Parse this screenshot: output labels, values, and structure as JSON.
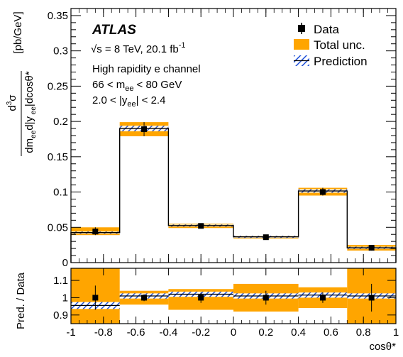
{
  "chart_data": [
    {
      "type": "bar",
      "panel": "main",
      "atlas_label": "ATLAS",
      "energy_label": "√s = 8 TeV, 20.1 fb",
      "energy_label_sup": "-1",
      "channel_label": "High rapidity e channel",
      "mass_label": "66 < m",
      "mass_label_sub": "ee",
      "mass_label_tail": "< 80 GeV",
      "rap_label": "2.0 < |y",
      "rap_label_sub": "ee",
      "rap_label_tail": "| < 2.4",
      "ylabel": "d³σ / dm_ee d|y_ee| dcosθ*",
      "ylabel_unit": "[pb/GeV]",
      "xlim": [
        -1,
        1
      ],
      "ylim": [
        0,
        0.36
      ],
      "yticks": [
        "0",
        "0.05",
        "0.1",
        "0.15",
        "0.2",
        "0.25",
        "0.3",
        "0.35"
      ],
      "ytick_values": [
        0,
        0.05,
        0.1,
        0.15,
        0.2,
        0.25,
        0.3,
        0.35
      ],
      "bin_edges": [
        -1,
        -0.7,
        -0.4,
        0,
        0.4,
        0.7,
        1
      ],
      "bin_centers": [
        -0.85,
        -0.55,
        -0.2,
        0.2,
        0.55,
        0.85
      ],
      "series": [
        {
          "name": "Data",
          "values": [
            0.044,
            0.189,
            0.052,
            0.036,
            0.1,
            0.021
          ]
        },
        {
          "name": "Total unc.",
          "band_lo": [
            0.039,
            0.179,
            0.049,
            0.034,
            0.095,
            0.017
          ],
          "band_hi": [
            0.05,
            0.199,
            0.055,
            0.038,
            0.106,
            0.025
          ]
        },
        {
          "name": "Prediction",
          "values": [
            0.0425,
            0.19,
            0.0525,
            0.0365,
            0.1015,
            0.021
          ],
          "band_lo": [
            0.041,
            0.186,
            0.051,
            0.035,
            0.099,
            0.0195
          ],
          "band_hi": [
            0.044,
            0.194,
            0.054,
            0.038,
            0.104,
            0.0225
          ]
        }
      ],
      "legend": [
        "Data",
        "Total unc.",
        "Prediction"
      ],
      "colors": {
        "band": "#ffa500",
        "prediction": "#1e4fd8"
      }
    },
    {
      "type": "bar",
      "panel": "ratio",
      "ylabel": "Pred. / Data",
      "xlabel": "cosθ*",
      "xlim": [
        -1,
        1
      ],
      "ylim": [
        0.85,
        1.17
      ],
      "xticks": [
        "-1",
        "-0.8",
        "-0.6",
        "-0.4",
        "-0.2",
        "0",
        "0.2",
        "0.4",
        "0.6",
        "0.8",
        "1"
      ],
      "xtick_values": [
        -1,
        -0.8,
        -0.6,
        -0.4,
        -0.2,
        0,
        0.2,
        0.4,
        0.6,
        0.8,
        1
      ],
      "yticks": [
        "0.9",
        "1",
        "1.1"
      ],
      "ytick_values": [
        0.9,
        1.0,
        1.1
      ],
      "bin_edges": [
        -1,
        -0.7,
        -0.4,
        0,
        0.4,
        0.7,
        1
      ],
      "bin_centers": [
        -0.85,
        -0.55,
        -0.2,
        0.2,
        0.55,
        0.85
      ],
      "band_lo": [
        0.85,
        0.96,
        0.93,
        0.92,
        0.94,
        0.85
      ],
      "band_hi": [
        1.17,
        1.04,
        1.05,
        1.08,
        1.06,
        1.17
      ],
      "data_values": [
        1.0,
        1.0,
        1.0,
        1.0,
        1.0,
        1.0
      ],
      "data_err": [
        0.07,
        0.02,
        0.03,
        0.04,
        0.03,
        0.08
      ],
      "pred_values": [
        0.955,
        1.01,
        1.02,
        1.01,
        1.015,
        1.01
      ],
      "pred_err": [
        0.02,
        0.015,
        0.015,
        0.015,
        0.015,
        0.015
      ]
    }
  ]
}
